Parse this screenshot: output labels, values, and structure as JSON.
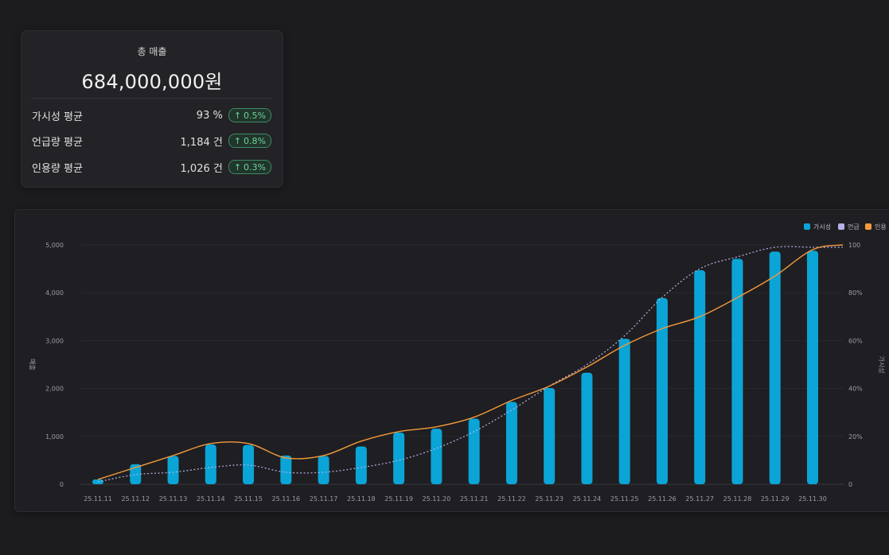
{
  "summary": {
    "title": "총 매출",
    "total": "684,000,000원",
    "metrics": [
      {
        "label": "가시성 평균",
        "value": "93 %",
        "change": "0.5%"
      },
      {
        "label": "언급량 평균",
        "value": "1,184 건",
        "change": "0.8%"
      },
      {
        "label": "인용량 평균",
        "value": "1,026 건",
        "change": "0.3%"
      }
    ]
  },
  "colors": {
    "bar": "#0aa5d6",
    "mention": "#b3b1e8",
    "citation": "#f29a3c",
    "badge_text": "#6fd39a"
  },
  "chart_data": {
    "type": "bar",
    "categories": [
      "25.11.11",
      "25.11.12",
      "25.11.13",
      "25.11.14",
      "25.11.15",
      "25.11.16",
      "25.11.17",
      "25.11.18",
      "25.11.19",
      "25.11.20",
      "25.11.21",
      "25.11.22",
      "25.11.23",
      "25.11.24",
      "25.11.25",
      "25.11.26",
      "25.11.27",
      "25.11.28",
      "25.11.29",
      "25.11.30"
    ],
    "series": [
      {
        "name": "가시성",
        "type": "bar",
        "axis": "left",
        "values": [
          100,
          420,
          590,
          830,
          820,
          600,
          590,
          790,
          1080,
          1160,
          1370,
          1720,
          2010,
          2330,
          3040,
          3890,
          4470,
          4710,
          4860,
          4880
        ]
      },
      {
        "name": "언급",
        "type": "line",
        "axis": "right",
        "style": "dashed",
        "values": [
          1,
          4,
          5,
          7,
          8,
          5,
          5,
          7,
          10,
          15,
          22,
          31,
          41,
          50,
          62,
          78,
          90,
          95,
          99,
          99
        ]
      },
      {
        "name": "인용",
        "type": "line",
        "axis": "right",
        "style": "solid",
        "values": [
          2,
          7,
          12,
          17,
          17,
          11,
          12,
          18,
          22,
          24,
          28,
          35,
          41,
          49,
          58,
          65,
          70,
          78,
          87,
          98
        ]
      }
    ],
    "ylabel": "매출",
    "y2label": "가시성",
    "ylim": [
      0,
      5000
    ],
    "yticks": [
      "0",
      "1,000",
      "2,000",
      "3,000",
      "4,000",
      "5,000"
    ],
    "y2lim": [
      0,
      100
    ],
    "y2ticks": [
      "0",
      "20%",
      "40%",
      "60%",
      "80%",
      "100"
    ],
    "grid": true,
    "legend": "top-right"
  }
}
